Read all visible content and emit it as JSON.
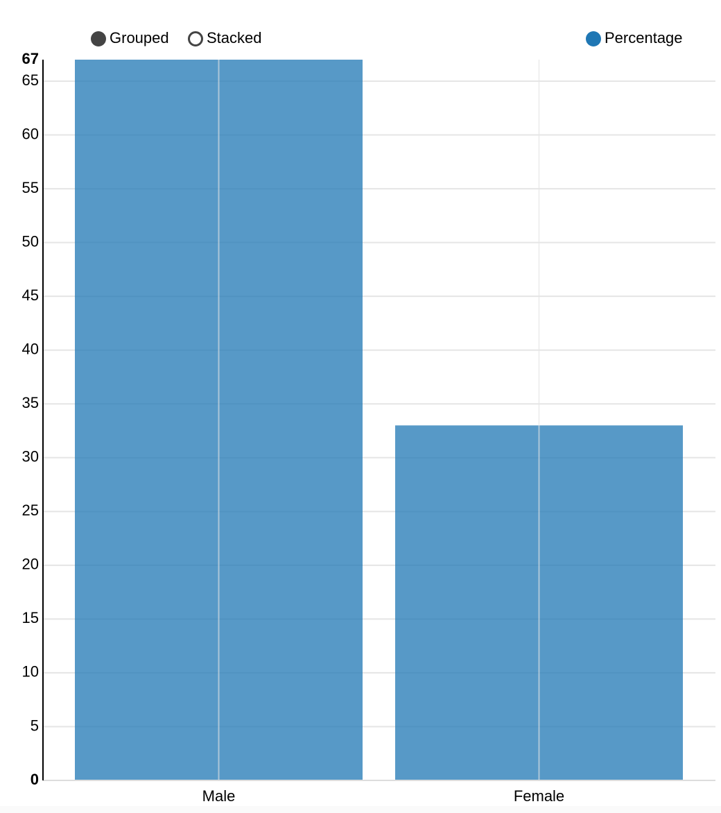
{
  "chart_data": {
    "type": "bar",
    "controls": [
      "Grouped",
      "Stacked"
    ],
    "categories": [
      "Male",
      "Female"
    ],
    "series": [
      {
        "name": "Percentage",
        "color": "#1f77b4",
        "values": [
          67,
          33
        ]
      }
    ],
    "ylim": [
      0,
      67
    ],
    "yticks": [
      0,
      5,
      10,
      15,
      20,
      25,
      30,
      35,
      40,
      45,
      50,
      55,
      60,
      65
    ],
    "grid": true
  }
}
